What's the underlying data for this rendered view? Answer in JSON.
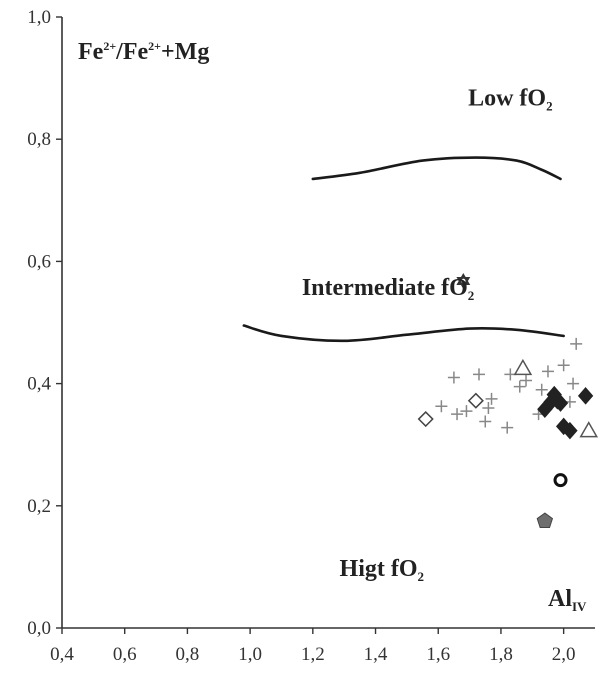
{
  "chart_data": {
    "type": "scatter",
    "ylabel": {
      "base1": "Fe",
      "sup1": "2+",
      "mid": "/Fe",
      "sup2": "2+",
      "end": "+Mg"
    },
    "xlabel": {
      "base": "Al",
      "sub": "IV"
    },
    "xlim": [
      0.4,
      2.1
    ],
    "ylim": [
      0.0,
      1.0
    ],
    "x_ticks": [
      "0,4",
      "0,6",
      "0,8",
      "1,0",
      "1,2",
      "1,4",
      "1,6",
      "1,8",
      "2,0"
    ],
    "x_tick_values": [
      0.4,
      0.6,
      0.8,
      1.0,
      1.2,
      1.4,
      1.6,
      1.8,
      2.0
    ],
    "y_ticks": [
      "0,0",
      "0,2",
      "0,4",
      "0,6",
      "0,8",
      "1,0"
    ],
    "y_tick_values": [
      0.0,
      0.2,
      0.4,
      0.6,
      0.8,
      1.0
    ],
    "grid": false,
    "annotations": [
      {
        "base": "Low fO",
        "sub": "2",
        "x": 1.83,
        "y": 0.855
      },
      {
        "base": "Intermediate fO",
        "sub": "2",
        "x": 1.44,
        "y": 0.545
      },
      {
        "base": "Higt fO",
        "sub": "2",
        "x": 1.42,
        "y": 0.085
      }
    ],
    "boundary_lines": [
      {
        "name": "upper",
        "points": [
          [
            1.2,
            0.735
          ],
          [
            1.35,
            0.745
          ],
          [
            1.55,
            0.765
          ],
          [
            1.72,
            0.77
          ],
          [
            1.85,
            0.765
          ],
          [
            1.93,
            0.75
          ],
          [
            1.99,
            0.735
          ]
        ]
      },
      {
        "name": "lower",
        "points": [
          [
            0.98,
            0.495
          ],
          [
            1.1,
            0.478
          ],
          [
            1.3,
            0.47
          ],
          [
            1.5,
            0.48
          ],
          [
            1.7,
            0.49
          ],
          [
            1.85,
            0.488
          ],
          [
            2.0,
            0.478
          ]
        ]
      }
    ],
    "series": [
      {
        "marker": "plus",
        "points": [
          [
            1.61,
            0.363
          ],
          [
            1.65,
            0.41
          ],
          [
            1.66,
            0.35
          ],
          [
            1.69,
            0.355
          ],
          [
            1.73,
            0.415
          ],
          [
            1.75,
            0.338
          ],
          [
            1.76,
            0.36
          ],
          [
            1.77,
            0.375
          ],
          [
            1.82,
            0.328
          ],
          [
            1.83,
            0.415
          ],
          [
            1.86,
            0.395
          ],
          [
            1.88,
            0.405
          ],
          [
            1.92,
            0.35
          ],
          [
            1.93,
            0.39
          ],
          [
            1.95,
            0.42
          ],
          [
            2.0,
            0.43
          ],
          [
            2.02,
            0.37
          ],
          [
            2.03,
            0.4
          ],
          [
            2.04,
            0.465
          ]
        ]
      },
      {
        "marker": "open-diamond",
        "points": [
          [
            1.56,
            0.342
          ],
          [
            1.72,
            0.372
          ]
        ]
      },
      {
        "marker": "open-triangle",
        "points": [
          [
            1.87,
            0.425
          ],
          [
            2.08,
            0.323
          ]
        ]
      },
      {
        "marker": "filled-diamond",
        "points": [
          [
            1.94,
            0.358
          ],
          [
            1.96,
            0.37
          ],
          [
            1.97,
            0.382
          ],
          [
            1.98,
            0.372
          ],
          [
            1.99,
            0.368
          ],
          [
            2.0,
            0.33
          ],
          [
            2.02,
            0.323
          ],
          [
            2.07,
            0.38
          ]
        ]
      },
      {
        "marker": "star",
        "points": [
          [
            1.68,
            0.568
          ]
        ]
      },
      {
        "marker": "ring",
        "points": [
          [
            1.99,
            0.242
          ]
        ]
      },
      {
        "marker": "pentagon",
        "points": [
          [
            1.94,
            0.175
          ]
        ]
      }
    ]
  }
}
